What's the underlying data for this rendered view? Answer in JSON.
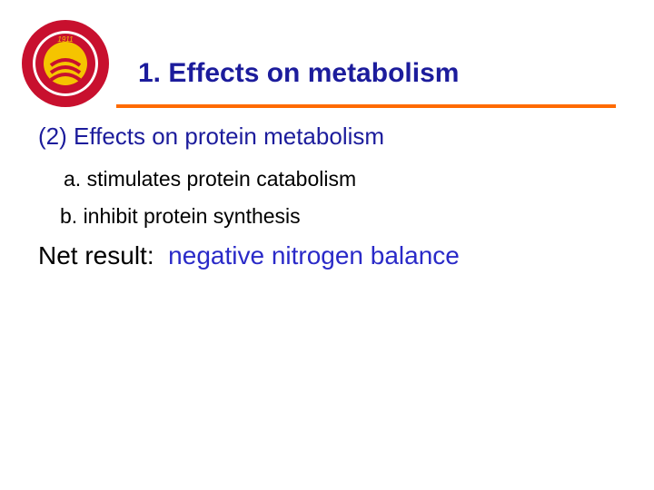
{
  "logo": {
    "year": "1911"
  },
  "header": {
    "title": "1. Effects on metabolism"
  },
  "body": {
    "subtitle": "(2) Effects on protein metabolism",
    "items": [
      "a. stimulates protein catabolism",
      "b. inhibit protein synthesis"
    ],
    "result": {
      "label": "Net result:",
      "value": "negative nitrogen balance"
    }
  }
}
